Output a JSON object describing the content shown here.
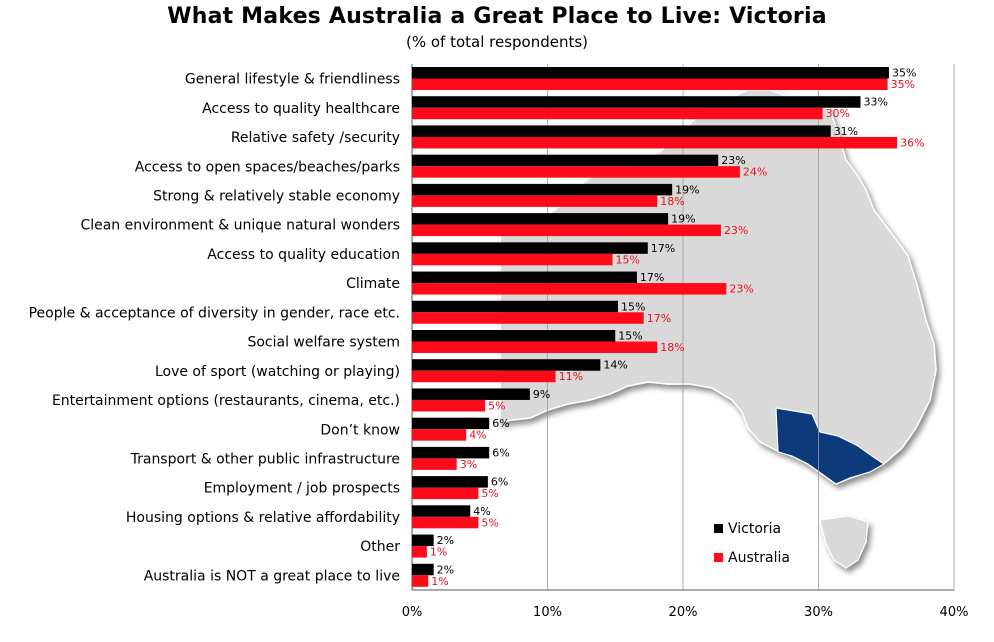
{
  "chart_data": {
    "type": "bar",
    "orientation": "horizontal",
    "title": "What Makes Australia a Great Place to Live: Victoria",
    "subtitle": "(% of total respondents)",
    "categories": [
      "General lifestyle & friendliness",
      "Access to quality healthcare",
      "Relative safety /security",
      "Access to open spaces/beaches/parks",
      "Strong & relatively stable economy",
      "Clean environment & unique natural wonders",
      "Access to quality education",
      "Climate",
      "People & acceptance of diversity in gender, race etc.",
      "Social welfare system",
      "Love of sport (watching or playing)",
      "Entertainment options (restaurants, cinema, etc.)",
      "Don’t know",
      "Transport & other public infrastructure",
      "Employment / job prospects",
      "Housing options & relative affordability",
      "Other",
      "Australia is NOT a great place to live"
    ],
    "series": [
      {
        "name": "Victoria",
        "color": "#000000",
        "values": [
          35.2,
          33.1,
          30.9,
          22.6,
          19.2,
          18.9,
          17.4,
          16.6,
          15.2,
          15.0,
          13.9,
          8.7,
          5.7,
          5.7,
          5.6,
          4.3,
          1.6,
          1.6
        ],
        "labels": [
          "35%",
          "33%",
          "31%",
          "23%",
          "19%",
          "19%",
          "17%",
          "17%",
          "15%",
          "15%",
          "14%",
          "9%",
          "6%",
          "6%",
          "6%",
          "4%",
          "2%",
          "2%"
        ]
      },
      {
        "name": "Australia",
        "color": "#ff0a1a",
        "values": [
          35.1,
          30.3,
          35.8,
          24.2,
          18.1,
          22.8,
          14.8,
          23.2,
          17.1,
          18.1,
          10.6,
          5.4,
          4.0,
          3.3,
          4.9,
          4.9,
          1.1,
          1.2
        ],
        "labels": [
          "35%",
          "30%",
          "36%",
          "24%",
          "18%",
          "23%",
          "15%",
          "23%",
          "17%",
          "18%",
          "11%",
          "5%",
          "4%",
          "3%",
          "5%",
          "5%",
          "1%",
          "1%"
        ]
      }
    ],
    "xlim": [
      0,
      40
    ],
    "xticks": [
      "0%",
      "10%",
      "20%",
      "30%",
      "40%"
    ],
    "xtick_values": [
      0,
      10,
      20,
      30,
      40
    ],
    "grid": true,
    "legend_position": "bottom-right",
    "background_image": "australia-map-victoria-highlighted",
    "map_colors": {
      "land": "#d9d9d9",
      "highlight": "#0d3a7a"
    }
  }
}
